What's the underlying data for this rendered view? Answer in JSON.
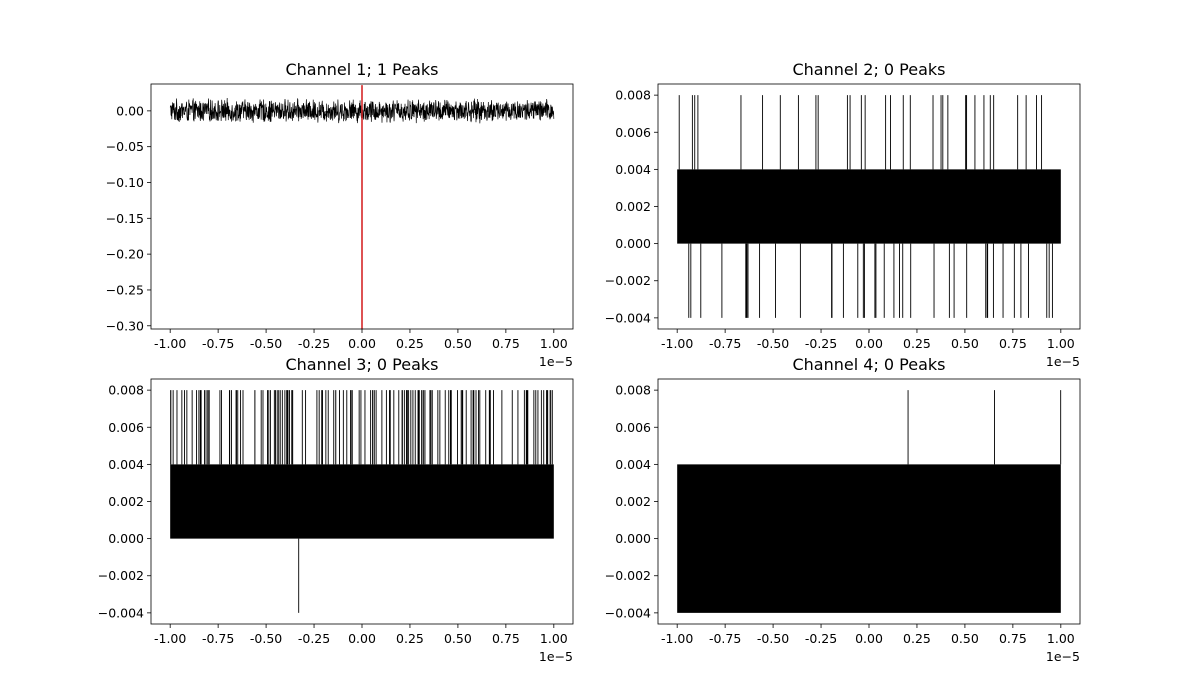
{
  "chart_data": [
    {
      "type": "line",
      "title": "Channel 1; 1 Peaks",
      "xlim": [
        -1.1e-05,
        1.1e-05
      ],
      "ylim": [
        -0.3045,
        0.0375
      ],
      "x_ticks": [
        -1.0,
        -0.75,
        -0.5,
        -0.25,
        0.0,
        0.25,
        0.5,
        0.75,
        1.0
      ],
      "x_tick_labels": [
        "-1.00",
        "-0.75",
        "-0.50",
        "-0.25",
        "0.00",
        "0.25",
        "0.50",
        "0.75",
        "1.00"
      ],
      "x_offset_label": "1e−5",
      "y_ticks": [
        0.0,
        -0.05,
        -0.1,
        -0.15,
        -0.2,
        -0.25,
        -0.3
      ],
      "y_tick_labels": [
        "0.00",
        "−0.05",
        "−0.10",
        "−0.15",
        "−0.20",
        "−0.25",
        "−0.30"
      ],
      "signal": {
        "kind": "noise",
        "x_range": [
          -1e-05,
          1e-05
        ],
        "center": 0.0,
        "amplitude": 0.018,
        "color": "#000000"
      },
      "peaks": [
        {
          "x": 0.0,
          "y_range": [
            -0.305,
            0.036
          ],
          "color": "#d62728"
        }
      ],
      "grid": false
    },
    {
      "type": "line",
      "title": "Channel 2; 0 Peaks",
      "xlim": [
        -1.1e-05,
        1.1e-05
      ],
      "ylim": [
        -0.0046,
        0.0086
      ],
      "x_ticks": [
        -1.0,
        -0.75,
        -0.5,
        -0.25,
        0.0,
        0.25,
        0.5,
        0.75,
        1.0
      ],
      "x_tick_labels": [
        "-1.00",
        "-0.75",
        "-0.50",
        "-0.25",
        "0.00",
        "0.25",
        "0.50",
        "0.75",
        "1.00"
      ],
      "x_offset_label": "1e−5",
      "y_ticks": [
        0.008,
        0.006,
        0.004,
        0.002,
        0.0,
        -0.002,
        -0.004
      ],
      "y_tick_labels": [
        "0.008",
        "0.006",
        "0.004",
        "0.002",
        "0.000",
        "−0.002",
        "−0.004"
      ],
      "signal": {
        "kind": "quantized",
        "x_range": [
          -1e-05,
          1e-05
        ],
        "band": [
          0.0,
          0.004
        ],
        "high": 0.008,
        "low": -0.004,
        "high_count": 32,
        "low_count": 40,
        "color": "#000000"
      },
      "peaks": [],
      "grid": false
    },
    {
      "type": "line",
      "title": "Channel 3; 0 Peaks",
      "xlim": [
        -1.1e-05,
        1.1e-05
      ],
      "ylim": [
        -0.0046,
        0.0086
      ],
      "x_ticks": [
        -1.0,
        -0.75,
        -0.5,
        -0.25,
        0.0,
        0.25,
        0.5,
        0.75,
        1.0
      ],
      "x_tick_labels": [
        "-1.00",
        "-0.75",
        "-0.50",
        "-0.25",
        "0.00",
        "0.25",
        "0.50",
        "0.75",
        "1.00"
      ],
      "x_offset_label": "1e−5",
      "y_ticks": [
        0.008,
        0.006,
        0.004,
        0.002,
        0.0,
        -0.002,
        -0.004
      ],
      "y_tick_labels": [
        "0.008",
        "0.006",
        "0.004",
        "0.002",
        "0.000",
        "−0.002",
        "−0.004"
      ],
      "signal": {
        "kind": "quantized",
        "x_range": [
          -1e-05,
          1e-05
        ],
        "band": [
          0.0,
          0.004
        ],
        "high": 0.008,
        "low": -0.004,
        "high_count": 150,
        "low_count": 1,
        "color": "#000000"
      },
      "peaks": [],
      "grid": false
    },
    {
      "type": "line",
      "title": "Channel 4; 0 Peaks",
      "xlim": [
        -1.1e-05,
        1.1e-05
      ],
      "ylim": [
        -0.0046,
        0.0086
      ],
      "x_ticks": [
        -1.0,
        -0.75,
        -0.5,
        -0.25,
        0.0,
        0.25,
        0.5,
        0.75,
        1.0
      ],
      "x_tick_labels": [
        "-1.00",
        "-0.75",
        "-0.50",
        "-0.25",
        "0.00",
        "0.25",
        "0.50",
        "0.75",
        "1.00"
      ],
      "x_offset_label": "1e−5",
      "y_ticks": [
        0.008,
        0.006,
        0.004,
        0.002,
        0.0,
        -0.002,
        -0.004
      ],
      "y_tick_labels": [
        "0.008",
        "0.006",
        "0.004",
        "0.002",
        "0.000",
        "−0.002",
        "−0.004"
      ],
      "signal": {
        "kind": "quantized",
        "x_range": [
          -1e-05,
          1e-05
        ],
        "band": [
          -0.004,
          0.004
        ],
        "high": 0.008,
        "low": -0.004,
        "high_count": 3,
        "low_count": 160,
        "color": "#000000"
      },
      "peaks": [],
      "grid": false
    }
  ]
}
